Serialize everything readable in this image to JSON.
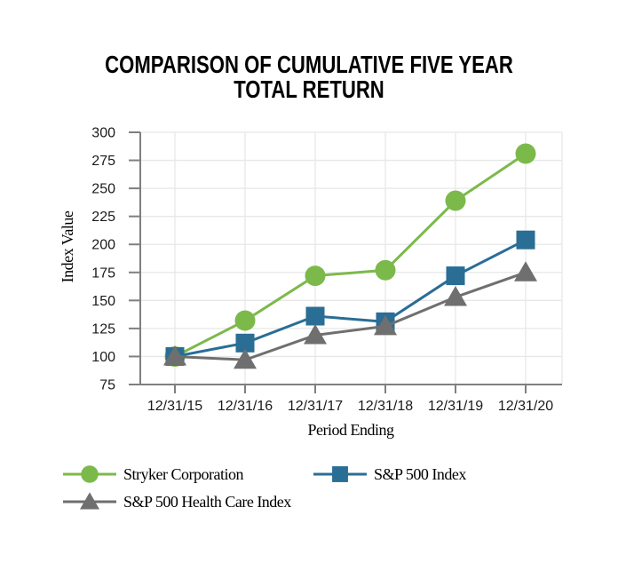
{
  "chart_data": {
    "type": "line",
    "title": "COMPARISON OF CUMULATIVE FIVE YEAR TOTAL RETURN",
    "xlabel": "Period Ending",
    "ylabel": "Index Value",
    "categories": [
      "12/31/15",
      "12/31/16",
      "12/31/17",
      "12/31/18",
      "12/31/19",
      "12/31/20"
    ],
    "ylim": [
      75,
      300
    ],
    "yticks": [
      75,
      100,
      125,
      150,
      175,
      200,
      225,
      250,
      275,
      300
    ],
    "grid": true,
    "legend_position": "bottom",
    "series": [
      {
        "name": "Stryker Corporation",
        "marker": "circle",
        "color": "#7CB94B",
        "values": [
          100,
          132,
          172,
          177,
          239,
          281
        ]
      },
      {
        "name": "S&P 500 Index",
        "marker": "square",
        "color": "#2A6D95",
        "values": [
          100,
          112,
          136,
          131,
          172,
          204
        ]
      },
      {
        "name": "S&P 500 Health Care Index",
        "marker": "triangle",
        "color": "#6F6F6F",
        "values": [
          100,
          97,
          119,
          127,
          153,
          175
        ]
      }
    ],
    "colors": {
      "axis": "#7F7F7F",
      "grid": "#E7E7E7",
      "tick_text": "#1A1A1A",
      "title_text": "#000000"
    }
  }
}
